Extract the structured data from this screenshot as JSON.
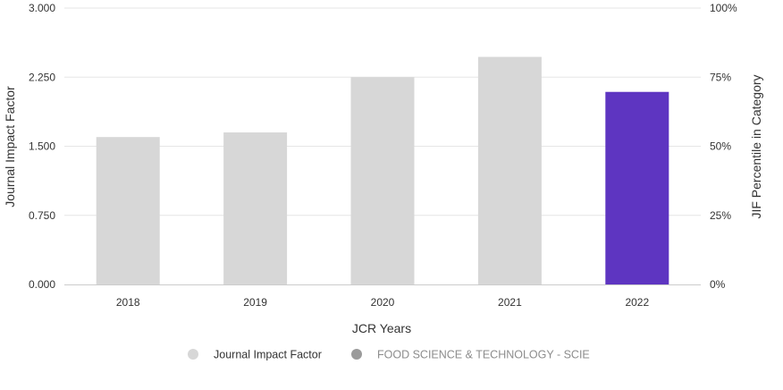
{
  "chart_data": {
    "type": "bar",
    "categories": [
      "2018",
      "2019",
      "2020",
      "2021",
      "2022"
    ],
    "series": [
      {
        "name": "Journal Impact Factor",
        "values": [
          1.6,
          1.65,
          2.25,
          2.47,
          2.09
        ]
      }
    ],
    "highlight_index": 4,
    "colors": {
      "bar": "#d7d7d7",
      "highlight": "#5e35c1",
      "grid": "#e6e6e6",
      "axis": "#cccccc",
      "legend_jif": "#d7d7d7",
      "legend_category": "#9b9b9b",
      "legend_category_text": "#8c8c8c"
    },
    "xlabel": "JCR Years",
    "ylabel": "Journal Impact Factor",
    "ylabel_right": "JIF Percentile in Category",
    "ylim": [
      0,
      3
    ],
    "yticks": [
      "0.000",
      "0.750",
      "1.500",
      "2.250",
      "3.000"
    ],
    "ylim_right": [
      0,
      100
    ],
    "yticks_right": [
      "0%",
      "25%",
      "50%",
      "75%",
      "100%"
    ],
    "grid": true,
    "legend": {
      "placement": "bottom-center",
      "items": [
        {
          "label": "Journal Impact Factor",
          "style": "active"
        },
        {
          "label": "FOOD SCIENCE & TECHNOLOGY - SCIE",
          "style": "inactive"
        }
      ]
    }
  }
}
